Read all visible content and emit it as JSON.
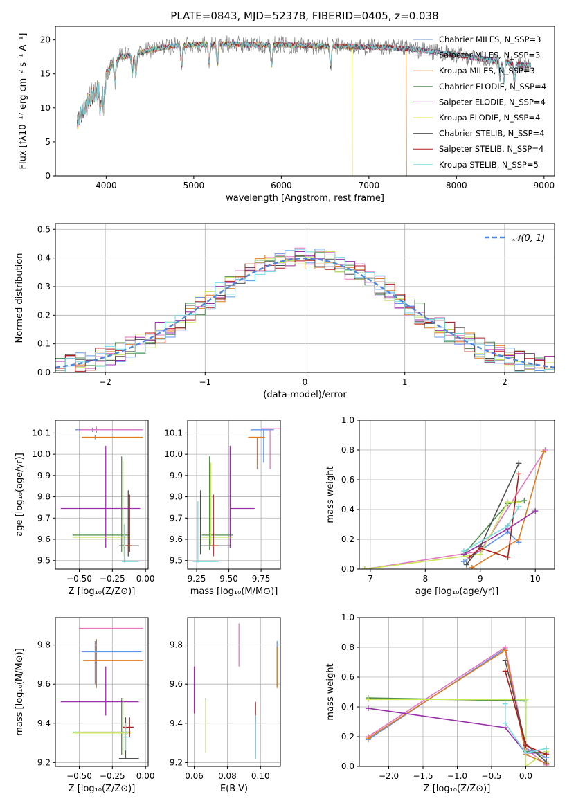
{
  "chart_data": [
    {
      "id": "spectrum",
      "type": "line",
      "title": "PLATE=0843, MJD=52378, FIBERID=0405, z=0.038",
      "xlabel": "wavelength [Angstrom, rest frame]",
      "ylabel": "Flux [fλ10⁻¹⁷ erg cm⁻² s⁻¹ A⁻¹]",
      "xlim": [
        3420,
        9120
      ],
      "ylim": [
        0,
        22
      ],
      "xticks": [
        4000,
        5000,
        6000,
        7000,
        8000,
        9000
      ],
      "yticks": [
        0,
        5,
        10,
        15,
        20
      ],
      "grid": false,
      "legend": "top-right",
      "observed_color": "#808080",
      "series": [
        {
          "name": "Chabrier MILES, N_SSP=3",
          "color": "#6495ed",
          "cut": null
        },
        {
          "name": "Salpeter MILES, N_SSP=3",
          "color": "#c77ec7",
          "cut": null
        },
        {
          "name": "Kroupa MILES, N_SSP=3",
          "color": "#e07a1f",
          "cut": 7430
        },
        {
          "name": "Chabrier ELODIE, N_SSP=4",
          "color": "#4f8f4f",
          "cut": null
        },
        {
          "name": "Salpeter ELODIE, N_SSP=4",
          "color": "#9a2faa",
          "cut": null
        },
        {
          "name": "Kroupa ELODIE, N_SSP=4",
          "color": "#e6e64a",
          "cut": 6810
        },
        {
          "name": "Chabrier STELIB, N_SSP=4",
          "color": "#505050",
          "cut": null
        },
        {
          "name": "Salpeter STELIB, N_SSP=4",
          "color": "#b01c1c",
          "cut": null
        },
        {
          "name": "Kroupa STELIB, N_SSP=5",
          "color": "#78dbe2",
          "cut": null
        }
      ],
      "continuum": {
        "x": [
          3670,
          3750,
          3850,
          3950,
          4050,
          4150,
          4300,
          4500,
          4700,
          5000,
          5300,
          5600,
          6000,
          6400,
          6800,
          7200,
          7600,
          8000,
          8400,
          8850
        ],
        "y": [
          9.5,
          11.5,
          13.5,
          14.2,
          16.0,
          17.5,
          17.8,
          18.5,
          19.0,
          19.3,
          19.4,
          19.3,
          19.3,
          19.1,
          19.0,
          18.9,
          18.5,
          17.8,
          17.0,
          16.2
        ]
      }
    },
    {
      "id": "residuals",
      "type": "line",
      "xlabel": "(data-model)/error",
      "ylabel": "Normed distribution",
      "xlim": [
        -2.5,
        2.5
      ],
      "ylim": [
        0,
        0.52
      ],
      "xticks": [
        -2,
        -1,
        0,
        1,
        2
      ],
      "xtick_labels": [
        "−2",
        "−1",
        "0",
        "1",
        "2"
      ],
      "yticks": [
        0.0,
        0.1,
        0.2,
        0.3,
        0.4,
        0.5
      ],
      "ytick_labels": [
        "0.0",
        "0.1",
        "0.2",
        "0.3",
        "0.4",
        "0.5"
      ],
      "grid": true,
      "legend": "top-right",
      "gaussian": {
        "name": "𝒩(0, 1)",
        "mean": 0,
        "sigma": 1,
        "color": "#4f86d9"
      },
      "bin_width": 0.1,
      "hist_colors": [
        "#6495ed",
        "#e377c2",
        "#e07a1f",
        "#4f8f4f",
        "#9a2faa",
        "#c8e65a",
        "#505050",
        "#b01c1c",
        "#78dbe2"
      ]
    },
    {
      "id": "age-vs-Z",
      "type": "scatter",
      "xlabel": "Z [log₁₀(Z/Z⊙)]",
      "ylabel": "age  [log₁₀(age/yr)]",
      "xlim": [
        -0.68,
        0.02
      ],
      "ylim": [
        9.46,
        10.16
      ],
      "xticks": [
        -0.5,
        -0.25,
        0.0
      ],
      "xtick_labels": [
        "−0.50",
        "−0.25",
        "0.00"
      ],
      "yticks": [
        9.5,
        9.6,
        9.7,
        9.8,
        9.9,
        10.0,
        10.1
      ],
      "ytick_labels": [
        "9.5",
        "9.6",
        "9.7",
        "9.8",
        "9.9",
        "10.0",
        "10.1"
      ],
      "grid": true,
      "crosses": [
        {
          "x": -0.4,
          "y": 10.115,
          "x0": -0.53,
          "x1": -0.03,
          "y0": 10.105,
          "y1": 10.125,
          "color": "#6495ed"
        },
        {
          "x": -0.37,
          "y": 10.115,
          "x0": -0.5,
          "x1": -0.02,
          "y0": 10.1,
          "y1": 10.13,
          "color": "#e377c2"
        },
        {
          "x": -0.38,
          "y": 10.08,
          "x0": -0.48,
          "x1": -0.02,
          "y0": 10.07,
          "y1": 10.09,
          "color": "#e07a1f"
        },
        {
          "x": -0.18,
          "y": 9.62,
          "x0": -0.55,
          "x1": -0.12,
          "y0": 9.54,
          "y1": 9.99,
          "color": "#4f8f4f"
        },
        {
          "x": -0.3,
          "y": 9.745,
          "x0": -0.64,
          "x1": -0.04,
          "y0": 9.56,
          "y1": 10.04,
          "color": "#9a2faa"
        },
        {
          "x": -0.17,
          "y": 9.61,
          "x0": -0.55,
          "x1": -0.12,
          "y0": 9.52,
          "y1": 9.97,
          "color": "#c8e65a"
        },
        {
          "x": -0.13,
          "y": 9.57,
          "x0": -0.2,
          "x1": -0.05,
          "y0": 9.52,
          "y1": 9.83,
          "color": "#505050"
        },
        {
          "x": -0.12,
          "y": 9.57,
          "x0": -0.17,
          "x1": -0.1,
          "y0": 9.54,
          "y1": 9.81,
          "color": "#b01c1c"
        },
        {
          "x": -0.16,
          "y": 9.495,
          "x0": -0.18,
          "x1": -0.05,
          "y0": 9.49,
          "y1": 9.67,
          "color": "#78dbe2"
        }
      ]
    },
    {
      "id": "age-vs-mass",
      "type": "scatter",
      "xlabel": "mass [log₁₀(M/M⊙)]",
      "xlim": [
        9.18,
        9.9
      ],
      "ylim": [
        9.46,
        10.16
      ],
      "xticks": [
        9.25,
        9.5,
        9.75
      ],
      "xtick_labels": [
        "9.25",
        "9.50",
        "9.75"
      ],
      "yticks": [
        9.5,
        9.6,
        9.7,
        9.8,
        9.9,
        10.0,
        10.1
      ],
      "ytick_labels": [
        "9.5",
        "9.6",
        "9.7",
        "9.8",
        "9.9",
        "10.0",
        "10.1"
      ],
      "grid": true,
      "crosses": [
        {
          "x": 9.77,
          "y": 10.115,
          "x0": 9.67,
          "x1": 9.85,
          "y0": 9.96,
          "y1": 10.12,
          "color": "#6495ed"
        },
        {
          "x": 9.82,
          "y": 10.12,
          "x0": 9.75,
          "x1": 9.9,
          "y0": 9.93,
          "y1": 10.12,
          "color": "#e377c2"
        },
        {
          "x": 9.72,
          "y": 10.08,
          "x0": 9.65,
          "x1": 9.78,
          "y0": 9.93,
          "y1": 10.08,
          "color": "#e07a1f"
        },
        {
          "x": 9.35,
          "y": 9.62,
          "x0": 9.29,
          "x1": 9.53,
          "y0": 9.55,
          "y1": 9.99,
          "color": "#4f8f4f"
        },
        {
          "x": 9.51,
          "y": 9.745,
          "x0": 9.51,
          "x1": 9.7,
          "y0": 9.56,
          "y1": 10.04,
          "color": "#9a2faa"
        },
        {
          "x": 9.36,
          "y": 9.61,
          "x0": 9.29,
          "x1": 9.53,
          "y0": 9.57,
          "y1": 9.96,
          "color": "#c8e65a"
        },
        {
          "x": 9.28,
          "y": 9.57,
          "x0": 9.28,
          "x1": 9.52,
          "y0": 9.53,
          "y1": 9.83,
          "color": "#505050"
        },
        {
          "x": 9.38,
          "y": 9.57,
          "x0": 9.36,
          "x1": 9.42,
          "y0": 9.52,
          "y1": 9.81,
          "color": "#b01c1c"
        },
        {
          "x": 9.26,
          "y": 9.495,
          "x0": 9.22,
          "x1": 9.42,
          "y0": 9.49,
          "y1": 9.78,
          "color": "#78dbe2"
        }
      ]
    },
    {
      "id": "weight-vs-age",
      "type": "line",
      "xlabel": "age  [log₁₀(age/yr)]",
      "ylabel": "mass weight",
      "xlim": [
        6.8,
        10.35
      ],
      "ylim": [
        0,
        1
      ],
      "xticks": [
        7,
        8,
        9,
        10
      ],
      "yticks": [
        0.0,
        0.2,
        0.4,
        0.6,
        0.8,
        1.0
      ],
      "ytick_labels": [
        "0.0",
        "0.2",
        "0.4",
        "0.6",
        "0.8",
        "1.0"
      ],
      "grid": true,
      "series": [
        {
          "color": "#6495ed",
          "x": [
            8.7,
            9.5,
            9.7
          ],
          "y": [
            0.05,
            0.25,
            0.18
          ]
        },
        {
          "color": "#e377c2",
          "x": [
            6.9,
            9.0,
            10.18
          ],
          "y": [
            0.0,
            0.12,
            0.8
          ]
        },
        {
          "color": "#e07a1f",
          "x": [
            8.85,
            9.7,
            10.15
          ],
          "y": [
            0.01,
            0.2,
            0.79
          ]
        },
        {
          "color": "#4f8f4f",
          "x": [
            8.7,
            9.5,
            9.8
          ],
          "y": [
            0.1,
            0.44,
            0.46
          ]
        },
        {
          "color": "#9a2faa",
          "x": [
            8.7,
            9.5,
            10.0
          ],
          "y": [
            0.1,
            0.27,
            0.39
          ]
        },
        {
          "color": "#c8e65a",
          "x": [
            6.9,
            9.0,
            9.5,
            9.7
          ],
          "y": [
            0.0,
            0.1,
            0.45,
            0.45
          ]
        },
        {
          "color": "#505050",
          "x": [
            8.75,
            9.0,
            9.7
          ],
          "y": [
            0.03,
            0.15,
            0.71
          ]
        },
        {
          "color": "#b01c1c",
          "x": [
            8.8,
            9.0,
            9.5,
            9.7
          ],
          "y": [
            0.08,
            0.14,
            0.08,
            0.64
          ]
        },
        {
          "color": "#78dbe2",
          "x": [
            8.7,
            9.5,
            9.7
          ],
          "y": [
            0.12,
            0.29,
            0.42
          ]
        }
      ]
    },
    {
      "id": "mass-vs-Z",
      "type": "scatter",
      "xlabel": "Z [log₁₀(Z/Z⊙)]",
      "ylabel": "mass [log₁₀(M/M⊙)]",
      "xlim": [
        -0.68,
        0.02
      ],
      "ylim": [
        9.18,
        9.94
      ],
      "xticks": [
        -0.5,
        -0.25,
        0.0
      ],
      "xtick_labels": [
        "−0.50",
        "−0.25",
        "0.00"
      ],
      "yticks": [
        9.2,
        9.4,
        9.6,
        9.8
      ],
      "ytick_labels": [
        "9.2",
        "9.4",
        "9.6",
        "9.8"
      ],
      "grid": true,
      "crosses": [
        {
          "x": -0.38,
          "y": 9.765,
          "x0": -0.48,
          "x1": -0.03,
          "y0": 9.6,
          "y1": 9.82,
          "color": "#6495ed"
        },
        {
          "x": -0.36,
          "y": 9.885,
          "x0": -0.5,
          "x1": -0.02,
          "y0": 9.885,
          "y1": 9.885,
          "color": "#e377c2"
        },
        {
          "x": -0.37,
          "y": 9.72,
          "x0": -0.47,
          "x1": -0.02,
          "y0": 9.58,
          "y1": 9.83,
          "color": "#e07a1f"
        },
        {
          "x": -0.18,
          "y": 9.355,
          "x0": -0.55,
          "x1": -0.1,
          "y0": 9.24,
          "y1": 9.53,
          "color": "#4f8f4f"
        },
        {
          "x": -0.3,
          "y": 9.51,
          "x0": -0.64,
          "x1": -0.05,
          "y0": 9.44,
          "y1": 9.69,
          "color": "#9a2faa"
        },
        {
          "x": -0.17,
          "y": 9.35,
          "x0": -0.55,
          "x1": -0.11,
          "y0": 9.24,
          "y1": 9.53,
          "color": "#c8e65a"
        },
        {
          "x": -0.15,
          "y": 9.22,
          "x0": -0.2,
          "x1": -0.05,
          "y0": 9.22,
          "y1": 9.43,
          "color": "#505050"
        },
        {
          "x": -0.12,
          "y": 9.38,
          "x0": -0.17,
          "x1": -0.09,
          "y0": 9.33,
          "y1": 9.43,
          "color": "#b01c1c"
        },
        {
          "x": -0.15,
          "y": 9.33,
          "x0": -0.17,
          "x1": -0.11,
          "y0": 9.26,
          "y1": 9.4,
          "color": "#78dbe2"
        }
      ]
    },
    {
      "id": "mass-vs-ebv",
      "type": "scatter",
      "xlabel": "E(B-V)",
      "xlim": [
        0.056,
        0.112
      ],
      "ylim": [
        9.18,
        9.94
      ],
      "xticks": [
        0.06,
        0.08,
        0.1
      ],
      "xtick_labels": [
        "0.06",
        "0.08",
        "0.10"
      ],
      "yticks": [
        9.2,
        9.4,
        9.6,
        9.8
      ],
      "ytick_labels": [
        "9.2",
        "9.4",
        "9.6",
        "9.8"
      ],
      "grid": true,
      "crosses": [
        {
          "x": 0.11,
          "y": 9.7,
          "x0": 0.11,
          "x1": 0.11,
          "y0": 9.59,
          "y1": 9.82,
          "color": "#6495ed"
        },
        {
          "x": 0.087,
          "y": 9.79,
          "x0": 0.087,
          "x1": 0.087,
          "y0": 9.69,
          "y1": 9.91,
          "color": "#e377c2"
        },
        {
          "x": 0.11,
          "y": 9.68,
          "x0": 0.11,
          "x1": 0.11,
          "y0": 9.58,
          "y1": 9.79,
          "color": "#e07a1f"
        },
        {
          "x": 0.067,
          "y": 9.38,
          "x0": 0.067,
          "x1": 0.067,
          "y0": 9.25,
          "y1": 9.53,
          "color": "#4f8f4f"
        },
        {
          "x": 0.06,
          "y": 9.56,
          "x0": 0.06,
          "x1": 0.06,
          "y0": 9.45,
          "y1": 9.69,
          "color": "#9a2faa"
        },
        {
          "x": 0.067,
          "y": 9.39,
          "x0": 0.067,
          "x1": 0.067,
          "y0": 9.25,
          "y1": 9.52,
          "color": "#c8e65a"
        },
        {
          "x": 0.097,
          "y": 9.33,
          "x0": 0.097,
          "x1": 0.097,
          "y0": 9.22,
          "y1": 9.43,
          "color": "#505050"
        },
        {
          "x": 0.097,
          "y": 9.46,
          "x0": 0.097,
          "x1": 0.097,
          "y0": 9.4,
          "y1": 9.51,
          "color": "#b01c1c"
        },
        {
          "x": 0.097,
          "y": 9.33,
          "x0": 0.097,
          "x1": 0.097,
          "y0": 9.22,
          "y1": 9.44,
          "color": "#78dbe2"
        }
      ]
    },
    {
      "id": "weight-vs-Z",
      "type": "line",
      "xlabel": "Z [log₁₀(Z/Z⊙)]",
      "ylabel": "mass weight",
      "xlim": [
        -2.43,
        0.42
      ],
      "ylim": [
        0,
        1
      ],
      "xticks": [
        -2.0,
        -1.5,
        -1.0,
        -0.5,
        0.0
      ],
      "xtick_labels": [
        "−2.0",
        "−1.5",
        "−1.0",
        "−0.5",
        "0.0"
      ],
      "yticks": [
        0.0,
        0.2,
        0.4,
        0.6,
        0.8,
        1.0
      ],
      "ytick_labels": [
        "0.0",
        "0.2",
        "0.4",
        "0.6",
        "0.8",
        "1.0"
      ],
      "grid": true,
      "series": [
        {
          "color": "#6495ed",
          "x": [
            -2.3,
            -0.3,
            0.0,
            0.3
          ],
          "y": [
            0.18,
            0.79,
            0.12,
            0.06
          ]
        },
        {
          "color": "#e377c2",
          "x": [
            -2.3,
            -0.3,
            0.0,
            0.3
          ],
          "y": [
            0.2,
            0.8,
            0.12,
            0.01
          ]
        },
        {
          "color": "#e07a1f",
          "x": [
            -2.3,
            -0.3,
            0.0,
            0.3
          ],
          "y": [
            0.19,
            0.78,
            0.08,
            0.02
          ]
        },
        {
          "color": "#4f8f4f",
          "x": [
            -2.3,
            0.0,
            0.0,
            0.3
          ],
          "y": [
            0.46,
            0.44,
            0.1,
            0.09
          ]
        },
        {
          "color": "#9a2faa",
          "x": [
            -2.3,
            -0.3,
            0.0,
            0.3
          ],
          "y": [
            0.39,
            0.26,
            0.09,
            0.09
          ]
        },
        {
          "color": "#c8e65a",
          "x": [
            -2.3,
            0.0,
            0.0,
            0.3
          ],
          "y": [
            0.45,
            0.45,
            0.0,
            0.1
          ]
        },
        {
          "color": "#505050",
          "x": [
            -0.3,
            0.0,
            0.3
          ],
          "y": [
            0.71,
            0.15,
            0.03
          ]
        },
        {
          "color": "#b01c1c",
          "x": [
            -0.3,
            0.0,
            0.3
          ],
          "y": [
            0.64,
            0.14,
            0.08
          ]
        },
        {
          "color": "#78dbe2",
          "x": [
            -0.3,
            -0.3,
            0.0,
            0.3
          ],
          "y": [
            0.42,
            0.29,
            0.09,
            0.12
          ]
        }
      ]
    }
  ]
}
